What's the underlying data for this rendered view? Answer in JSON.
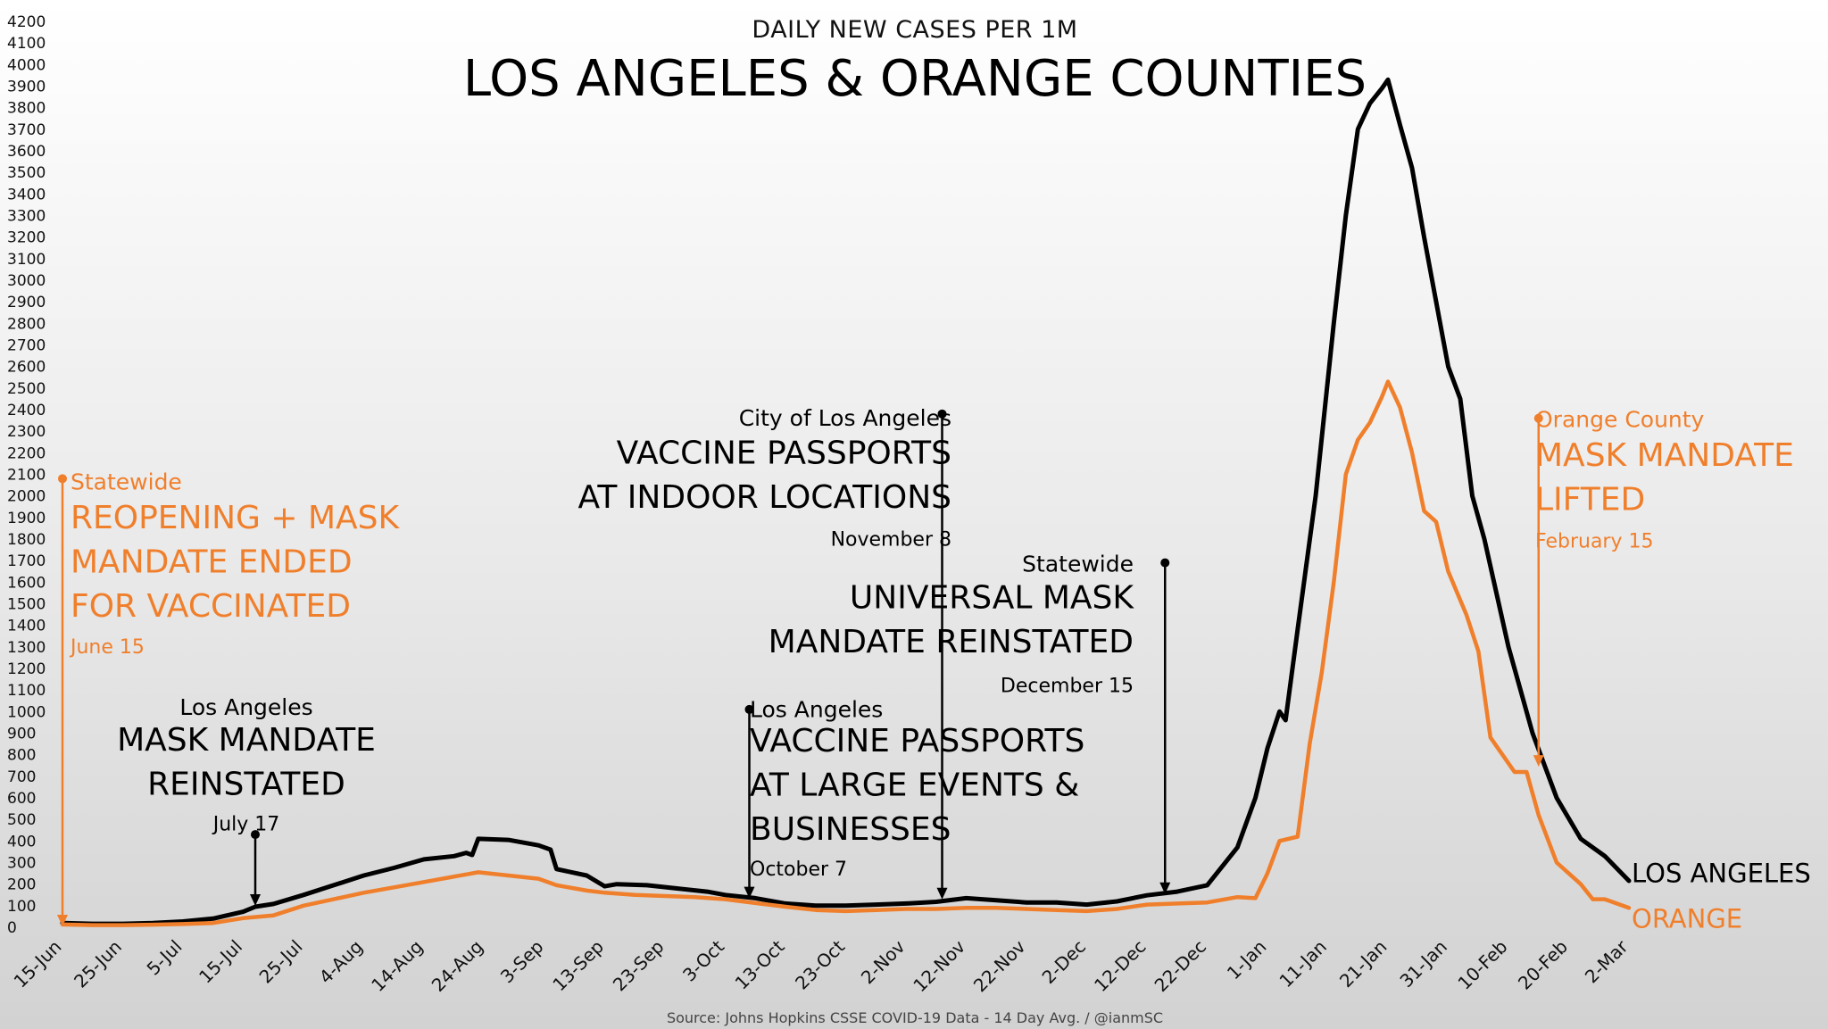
{
  "colors": {
    "la": "#000000",
    "orange": "#f07f2c"
  },
  "chart_data": {
    "type": "line",
    "subtitle": "DAILY NEW CASES PER 1M",
    "title": "LOS ANGELES & ORANGE COUNTIES",
    "source": "Source: Johns Hopkins CSSE COVID-19 Data - 14 Day Avg. / @ianmSC",
    "ylim": [
      0,
      4200
    ],
    "y_ticks": [
      "0",
      "100",
      "200",
      "300",
      "400",
      "500",
      "600",
      "700",
      "800",
      "900",
      "1000",
      "1100",
      "1200",
      "1300",
      "1400",
      "1500",
      "1600",
      "1700",
      "1800",
      "1900",
      "2000",
      "2100",
      "2200",
      "2300",
      "2400",
      "2500",
      "2600",
      "2700",
      "2800",
      "2900",
      "3000",
      "3100",
      "3200",
      "3300",
      "3400",
      "3500",
      "3600",
      "3700",
      "3800",
      "3900",
      "4000",
      "4100",
      "4200"
    ],
    "x_tick_labels": [
      "15-Jun",
      "25-Jun",
      "5-Jul",
      "15-Jul",
      "25-Jul",
      "4-Aug",
      "14-Aug",
      "24-Aug",
      "3-Sep",
      "13-Sep",
      "23-Sep",
      "3-Oct",
      "13-Oct",
      "23-Oct",
      "2-Nov",
      "12-Nov",
      "22-Nov",
      "2-Dec",
      "12-Dec",
      "22-Dec",
      "1-Jan",
      "11-Jan",
      "21-Jan",
      "31-Jan",
      "10-Feb",
      "20-Feb",
      "2-Mar"
    ],
    "x_dates": [
      "2021-06-15",
      "2021-06-25",
      "2021-07-05",
      "2021-07-15",
      "2021-07-25",
      "2021-08-04",
      "2021-08-14",
      "2021-08-24",
      "2021-09-03",
      "2021-09-13",
      "2021-09-23",
      "2021-10-03",
      "2021-10-13",
      "2021-10-23",
      "2021-11-02",
      "2021-11-12",
      "2021-11-22",
      "2021-12-02",
      "2021-12-12",
      "2021-12-22",
      "2022-01-01",
      "2022-01-11",
      "2022-01-21",
      "2022-01-31",
      "2022-02-10",
      "2022-02-20",
      "2022-03-02"
    ],
    "series": [
      {
        "name": "LOS ANGELES",
        "color": "#000000",
        "points": [
          [
            "2021-06-15",
            20
          ],
          [
            "2021-06-20",
            16
          ],
          [
            "2021-06-25",
            16
          ],
          [
            "2021-06-30",
            20
          ],
          [
            "2021-07-05",
            27
          ],
          [
            "2021-07-10",
            40
          ],
          [
            "2021-07-15",
            72
          ],
          [
            "2021-07-17",
            95
          ],
          [
            "2021-07-20",
            108
          ],
          [
            "2021-07-25",
            150
          ],
          [
            "2021-07-30",
            195
          ],
          [
            "2021-08-04",
            240
          ],
          [
            "2021-08-09",
            275
          ],
          [
            "2021-08-14",
            315
          ],
          [
            "2021-08-19",
            330
          ],
          [
            "2021-08-21",
            345
          ],
          [
            "2021-08-22",
            335
          ],
          [
            "2021-08-23",
            410
          ],
          [
            "2021-08-28",
            405
          ],
          [
            "2021-09-02",
            380
          ],
          [
            "2021-09-04",
            360
          ],
          [
            "2021-09-05",
            270
          ],
          [
            "2021-09-10",
            240
          ],
          [
            "2021-09-13",
            190
          ],
          [
            "2021-09-15",
            200
          ],
          [
            "2021-09-20",
            195
          ],
          [
            "2021-09-25",
            180
          ],
          [
            "2021-09-30",
            165
          ],
          [
            "2021-10-03",
            150
          ],
          [
            "2021-10-08",
            135
          ],
          [
            "2021-10-13",
            110
          ],
          [
            "2021-10-18",
            100
          ],
          [
            "2021-10-23",
            100
          ],
          [
            "2021-10-28",
            105
          ],
          [
            "2021-11-02",
            110
          ],
          [
            "2021-11-07",
            118
          ],
          [
            "2021-11-12",
            135
          ],
          [
            "2021-11-17",
            125
          ],
          [
            "2021-11-22",
            115
          ],
          [
            "2021-11-27",
            115
          ],
          [
            "2021-12-02",
            105
          ],
          [
            "2021-12-07",
            120
          ],
          [
            "2021-12-12",
            148
          ],
          [
            "2021-12-17",
            165
          ],
          [
            "2021-12-22",
            195
          ],
          [
            "2021-12-27",
            370
          ],
          [
            "2021-12-30",
            600
          ],
          [
            "2022-01-01",
            830
          ],
          [
            "2022-01-03",
            1000
          ],
          [
            "2022-01-04",
            960
          ],
          [
            "2022-01-06",
            1380
          ],
          [
            "2022-01-09",
            2000
          ],
          [
            "2022-01-12",
            2800
          ],
          [
            "2022-01-14",
            3300
          ],
          [
            "2022-01-16",
            3700
          ],
          [
            "2022-01-18",
            3820
          ],
          [
            "2022-01-20",
            3890
          ],
          [
            "2022-01-21",
            3930
          ],
          [
            "2022-01-23",
            3720
          ],
          [
            "2022-01-25",
            3520
          ],
          [
            "2022-01-27",
            3200
          ],
          [
            "2022-01-31",
            2600
          ],
          [
            "2022-02-02",
            2450
          ],
          [
            "2022-02-04",
            2000
          ],
          [
            "2022-02-06",
            1800
          ],
          [
            "2022-02-10",
            1300
          ],
          [
            "2022-02-14",
            900
          ],
          [
            "2022-02-18",
            600
          ],
          [
            "2022-02-22",
            410
          ],
          [
            "2022-02-26",
            330
          ],
          [
            "2022-03-02",
            215
          ]
        ]
      },
      {
        "name": "ORANGE",
        "color": "#f07f2c",
        "points": [
          [
            "2021-06-15",
            13
          ],
          [
            "2021-06-20",
            10
          ],
          [
            "2021-06-25",
            10
          ],
          [
            "2021-06-30",
            12
          ],
          [
            "2021-07-05",
            15
          ],
          [
            "2021-07-10",
            20
          ],
          [
            "2021-07-15",
            42
          ],
          [
            "2021-07-20",
            55
          ],
          [
            "2021-07-25",
            100
          ],
          [
            "2021-07-30",
            130
          ],
          [
            "2021-08-04",
            160
          ],
          [
            "2021-08-09",
            185
          ],
          [
            "2021-08-14",
            210
          ],
          [
            "2021-08-19",
            235
          ],
          [
            "2021-08-21",
            245
          ],
          [
            "2021-08-23",
            255
          ],
          [
            "2021-08-28",
            240
          ],
          [
            "2021-09-02",
            225
          ],
          [
            "2021-09-05",
            195
          ],
          [
            "2021-09-10",
            170
          ],
          [
            "2021-09-13",
            160
          ],
          [
            "2021-09-18",
            150
          ],
          [
            "2021-09-23",
            145
          ],
          [
            "2021-09-28",
            140
          ],
          [
            "2021-10-03",
            130
          ],
          [
            "2021-10-08",
            112
          ],
          [
            "2021-10-13",
            95
          ],
          [
            "2021-10-18",
            80
          ],
          [
            "2021-10-23",
            75
          ],
          [
            "2021-10-28",
            80
          ],
          [
            "2021-11-02",
            85
          ],
          [
            "2021-11-07",
            85
          ],
          [
            "2021-11-12",
            90
          ],
          [
            "2021-11-17",
            90
          ],
          [
            "2021-11-22",
            85
          ],
          [
            "2021-11-27",
            80
          ],
          [
            "2021-12-02",
            75
          ],
          [
            "2021-12-07",
            85
          ],
          [
            "2021-12-12",
            105
          ],
          [
            "2021-12-17",
            110
          ],
          [
            "2021-12-22",
            115
          ],
          [
            "2021-12-27",
            140
          ],
          [
            "2021-12-30",
            135
          ],
          [
            "2022-01-01",
            250
          ],
          [
            "2022-01-03",
            400
          ],
          [
            "2022-01-06",
            420
          ],
          [
            "2022-01-08",
            850
          ],
          [
            "2022-01-10",
            1180
          ],
          [
            "2022-01-12",
            1600
          ],
          [
            "2022-01-14",
            2100
          ],
          [
            "2022-01-16",
            2260
          ],
          [
            "2022-01-18",
            2340
          ],
          [
            "2022-01-20",
            2460
          ],
          [
            "2022-01-21",
            2530
          ],
          [
            "2022-01-23",
            2410
          ],
          [
            "2022-01-25",
            2200
          ],
          [
            "2022-01-27",
            1930
          ],
          [
            "2022-01-29",
            1880
          ],
          [
            "2022-01-31",
            1650
          ],
          [
            "2022-02-03",
            1450
          ],
          [
            "2022-02-05",
            1280
          ],
          [
            "2022-02-07",
            880
          ],
          [
            "2022-02-09",
            800
          ],
          [
            "2022-02-11",
            720
          ],
          [
            "2022-02-13",
            720
          ],
          [
            "2022-02-15",
            520
          ],
          [
            "2022-02-18",
            300
          ],
          [
            "2022-02-20",
            250
          ],
          [
            "2022-02-22",
            200
          ],
          [
            "2022-02-24",
            130
          ],
          [
            "2022-02-26",
            130
          ],
          [
            "2022-03-02",
            90
          ]
        ]
      }
    ],
    "end_labels": [
      "LOS ANGELES",
      "ORANGE"
    ],
    "annotations": [
      {
        "date": "2021-06-15",
        "top": 2080,
        "bottom": 0,
        "color": "#f07f2c",
        "small": "Statewide",
        "big": [
          "REOPENING + MASK",
          "MANDATE ENDED",
          "FOR VACCINATED"
        ],
        "date_label": "June 15"
      },
      {
        "date": "2021-07-17",
        "top": 430,
        "bottom": 95,
        "color": "#000000",
        "small": "Los Angeles",
        "big": [
          "MASK MANDATE",
          "REINSTATED"
        ],
        "date_label": "July 17"
      },
      {
        "date": "2021-10-07",
        "top": 1010,
        "bottom": 130,
        "color": "#000000",
        "small": "Los Angeles",
        "big": [
          "VACCINE PASSPORTS",
          "AT LARGE EVENTS &",
          "BUSINESSES"
        ],
        "date_label": "October 7"
      },
      {
        "date": "2021-11-08",
        "top": 2380,
        "bottom": 125,
        "color": "#000000",
        "small": "City of Los Angeles",
        "big": [
          "VACCINE PASSPORTS",
          "AT INDOOR LOCATIONS"
        ],
        "date_label": "November 8"
      },
      {
        "date": "2021-12-15",
        "top": 1690,
        "bottom": 150,
        "color": "#000000",
        "small": "Statewide",
        "big": [
          "UNIVERSAL MASK",
          "MANDATE REINSTATED"
        ],
        "date_label": "December 15"
      },
      {
        "date": "2022-02-15",
        "top": 2360,
        "bottom": 740,
        "color": "#f07f2c",
        "small": "Orange County",
        "big": [
          "MASK MANDATE",
          "LIFTED"
        ],
        "date_label": "February 15"
      }
    ]
  }
}
